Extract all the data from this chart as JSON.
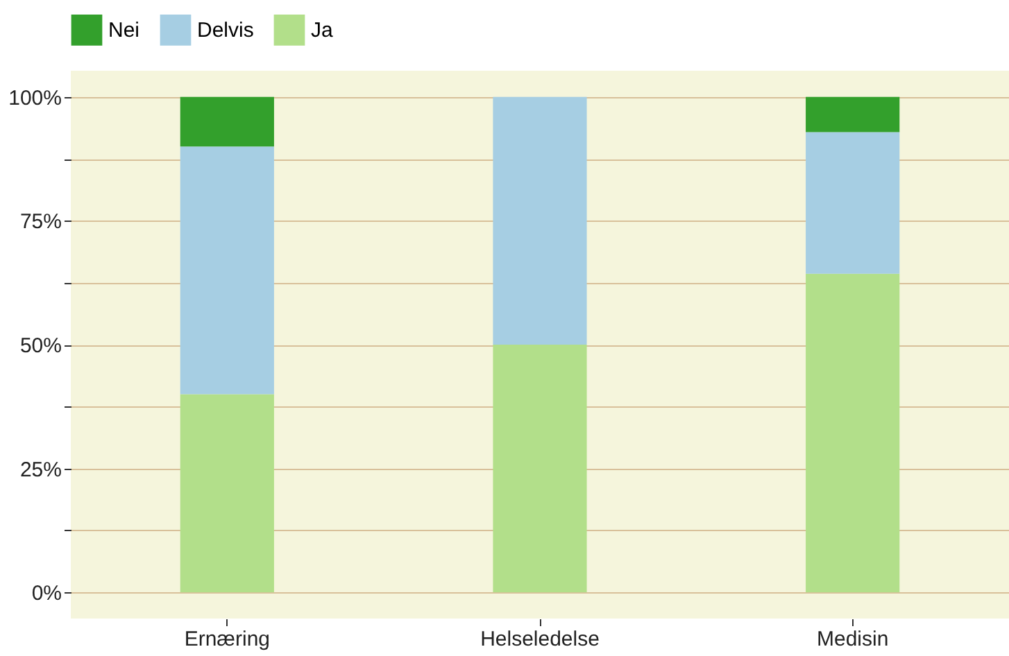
{
  "chart_data": {
    "type": "bar",
    "stacked": true,
    "categories": [
      "Ernæring",
      "Helseledelse",
      "Medisin"
    ],
    "series": [
      {
        "name": "Ja",
        "color": "#b2df8a",
        "values": [
          40,
          50,
          64.3
        ]
      },
      {
        "name": "Delvis",
        "color": "#a6cee3",
        "values": [
          50,
          50,
          28.6
        ]
      },
      {
        "name": "Nei",
        "color": "#33a02c",
        "values": [
          10,
          0,
          7.1
        ]
      }
    ],
    "ylim": [
      -5.3,
      105.3
    ],
    "yticks": [
      {
        "value": 0,
        "label": "0%"
      },
      {
        "value": 12.5,
        "label": null
      },
      {
        "value": 25,
        "label": "25%"
      },
      {
        "value": 37.5,
        "label": null
      },
      {
        "value": 50,
        "label": "50%"
      },
      {
        "value": 62.5,
        "label": null
      },
      {
        "value": 75,
        "label": "75%"
      },
      {
        "value": 87.5,
        "label": null
      },
      {
        "value": 100,
        "label": "100%"
      }
    ],
    "grid": "y",
    "legend": "top"
  }
}
